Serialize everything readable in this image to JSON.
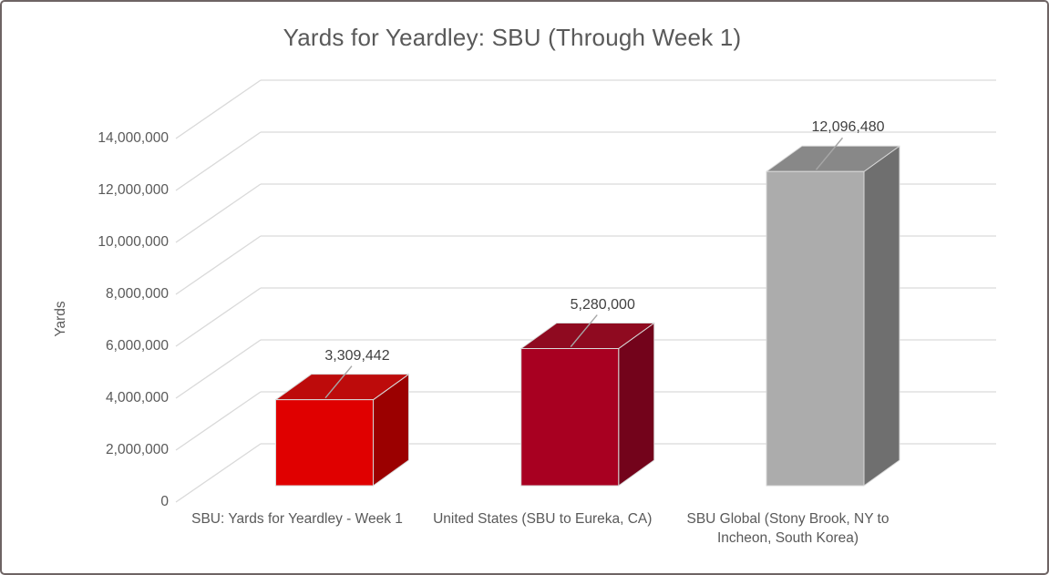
{
  "title": "Yards for Yeardley: SBU (Through Week 1)",
  "y_axis_title": "Yards",
  "colors": {
    "text": "#595959",
    "data_label_text": "#404040",
    "gridline": "#d9d9d9",
    "bar_edge": "#d9d9d9",
    "leader_line": "#a6a6a6",
    "border": "#6e6464",
    "background": "#ffffff"
  },
  "chart_data": {
    "type": "bar",
    "projection": "3d-oblique",
    "title": "Yards for Yeardley: SBU (Through Week 1)",
    "xlabel": "",
    "ylabel": "Yards",
    "ylim": [
      0,
      14000000
    ],
    "y_tick_step": 2000000,
    "y_tick_labels": [
      "0",
      "2,000,000",
      "4,000,000",
      "6,000,000",
      "8,000,000",
      "10,000,000",
      "12,000,000",
      "14,000,000"
    ],
    "grid": true,
    "legend": false,
    "categories": [
      "SBU: Yards for Yeardley - Week 1",
      "United States (SBU to Eureka, CA)",
      "SBU Global (Stony Brook, NY to\nIncheon, South Korea)"
    ],
    "values": [
      3309442,
      5280000,
      12096480
    ],
    "data_labels": [
      "3,309,442",
      "5,280,000",
      "12,096,480"
    ],
    "bar_colors": [
      {
        "front": "#e00000",
        "top": "#bd0b0b",
        "side": "#9b0000"
      },
      {
        "front": "#a80021",
        "top": "#8f0a20",
        "side": "#73031b"
      },
      {
        "front": "#acacac",
        "top": "#888888",
        "side": "#6f6f6f"
      }
    ]
  }
}
